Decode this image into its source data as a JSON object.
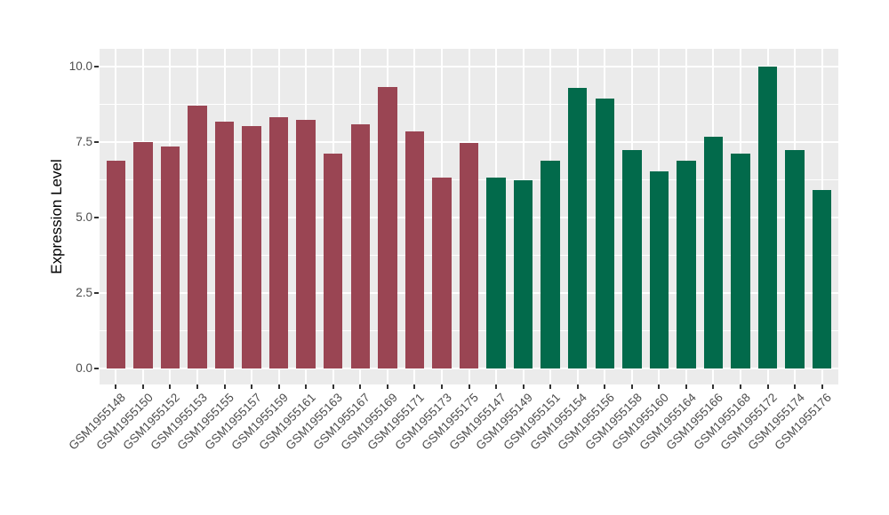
{
  "chart_data": {
    "type": "bar",
    "title": "",
    "xlabel": "",
    "ylabel": "Expression Level",
    "ylim": [
      0,
      10.5
    ],
    "ytick_values": [
      0.0,
      2.5,
      5.0,
      7.5,
      10.0
    ],
    "ytick_labels": [
      "0.0",
      "2.5",
      "5.0",
      "7.5",
      "10.0"
    ],
    "grid": "major-and-minor-white-on-gray",
    "legend_position": "none",
    "panel_background": "#EBEBEB",
    "gridline_color": "#FFFFFF",
    "series": [
      {
        "name": "maroon-group",
        "color": "#9A4553",
        "categories": [
          "GSM1955148",
          "GSM1955150",
          "GSM1955152",
          "GSM1955153",
          "GSM1955155",
          "GSM1955157",
          "GSM1955159",
          "GSM1955161",
          "GSM1955163",
          "GSM1955167",
          "GSM1955169",
          "GSM1955171",
          "GSM1955173",
          "GSM1955175"
        ],
        "values": [
          6.88,
          7.5,
          7.34,
          8.72,
          8.18,
          8.03,
          8.33,
          8.25,
          7.13,
          8.08,
          9.31,
          7.84,
          6.32,
          7.47
        ]
      },
      {
        "name": "green-group",
        "color": "#026A4B",
        "categories": [
          "GSM1955147",
          "GSM1955149",
          "GSM1955151",
          "GSM1955154",
          "GSM1955156",
          "GSM1955158",
          "GSM1955160",
          "GSM1955164",
          "GSM1955166",
          "GSM1955168",
          "GSM1955172",
          "GSM1955174",
          "GSM1955176"
        ],
        "values": [
          6.33,
          6.23,
          6.87,
          9.28,
          8.93,
          7.24,
          6.54,
          6.89,
          7.69,
          7.11,
          10.0,
          7.25,
          5.9
        ]
      }
    ]
  }
}
